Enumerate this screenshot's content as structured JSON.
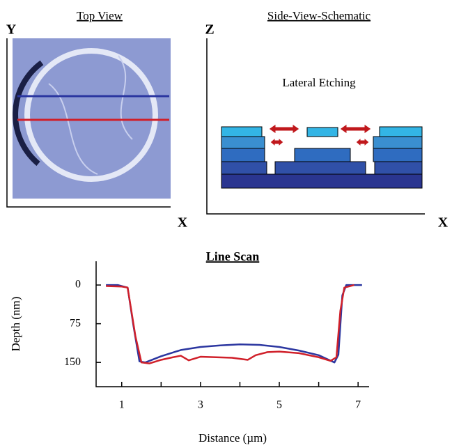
{
  "top_view": {
    "title": "Top View",
    "y_axis": "Y",
    "x_axis": "X"
  },
  "schematic": {
    "title": "Side-View-Schematic",
    "z_axis": "Z",
    "x_axis": "X",
    "label": "Lateral Etching"
  },
  "chart_data": {
    "type": "line",
    "title": "Line Scan",
    "x_label": "Distance (µm)",
    "y_label": "Depth (nm)",
    "xlim": [
      0.35,
      7.28
    ],
    "xticks": [
      1,
      3,
      5,
      7
    ],
    "xminor_ticks": [
      2,
      4,
      6
    ],
    "ylim": [
      -46,
      197
    ],
    "yticks": [
      0,
      75,
      150
    ],
    "y_inverted": true,
    "series": [
      {
        "color": "#2b36a0",
        "x": [
          0.6,
          0.9,
          1.15,
          1.3,
          1.45,
          1.6,
          2,
          2.5,
          3,
          3.5,
          4,
          4.5,
          5,
          5.5,
          6,
          6.2,
          6.4,
          6.5,
          6.6,
          6.7,
          7.1
        ],
        "values": [
          0,
          0,
          5,
          80,
          148,
          150,
          138,
          126,
          120,
          117,
          115,
          116,
          120,
          127,
          136,
          143,
          150,
          135,
          20,
          0,
          0
        ]
      },
      {
        "color": "#d0202a",
        "x": [
          0.6,
          1.0,
          1.15,
          1.35,
          1.5,
          1.7,
          2,
          2.3,
          2.5,
          2.7,
          3,
          3.4,
          3.8,
          4.2,
          4.4,
          4.7,
          5,
          5.5,
          6,
          6.3,
          6.45,
          6.55,
          6.65,
          6.9
        ],
        "values": [
          2,
          3,
          5,
          100,
          150,
          152,
          145,
          140,
          137,
          146,
          139,
          140,
          141,
          145,
          136,
          130,
          129,
          132,
          140,
          147,
          140,
          50,
          5,
          0
        ]
      }
    ]
  }
}
